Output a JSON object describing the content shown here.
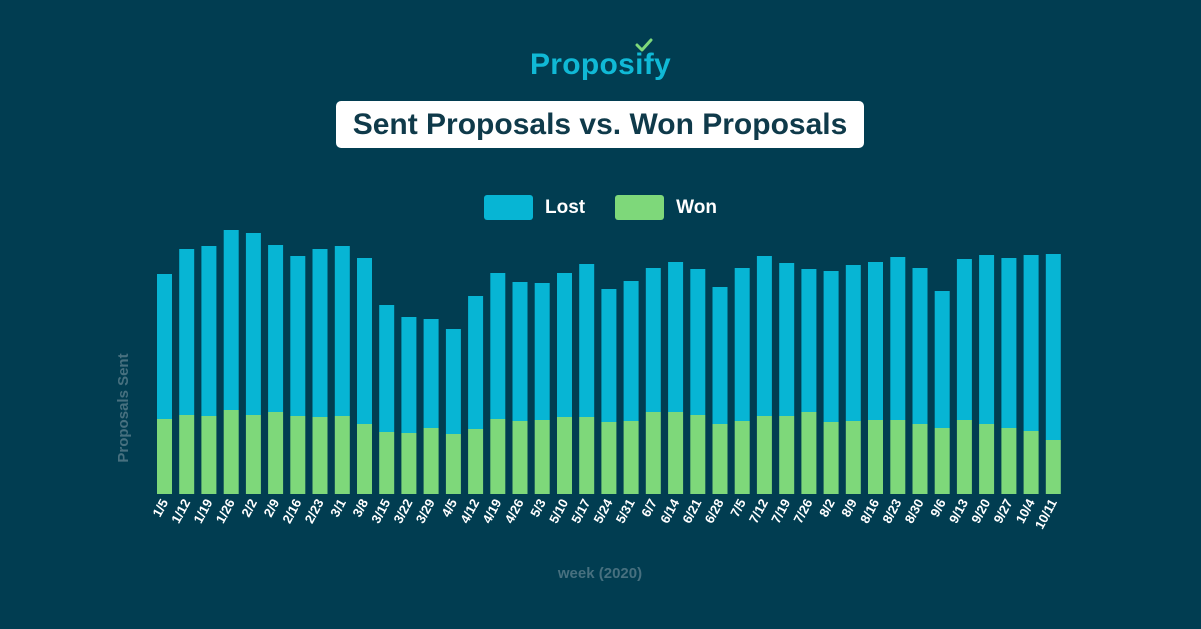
{
  "brand": {
    "name": "Proposify",
    "color": "#10b9d6",
    "check_color": "#7ed87a"
  },
  "chart_data": {
    "type": "bar",
    "stacked": true,
    "title": "Sent Proposals vs. Won Proposals",
    "xlabel": "week (2020)",
    "ylabel": "Proposals Sent",
    "y_axis_ticks_shown": false,
    "grid": false,
    "legend_position": "top-center",
    "categories": [
      "1/5",
      "1/12",
      "1/19",
      "1/26",
      "2/2",
      "2/9",
      "2/16",
      "2/23",
      "3/1",
      "3/8",
      "3/15",
      "3/22",
      "3/29",
      "4/5",
      "4/12",
      "4/19",
      "4/26",
      "5/3",
      "5/10",
      "5/17",
      "5/24",
      "5/31",
      "6/7",
      "6/14",
      "6/21",
      "6/28",
      "7/5",
      "7/12",
      "7/19",
      "7/26",
      "8/2",
      "8/9",
      "8/16",
      "8/23",
      "8/30",
      "9/6",
      "9/13",
      "9/20",
      "9/27",
      "10/4",
      "10/11"
    ],
    "ylim": [
      0,
      260
    ],
    "series": [
      {
        "name": "Won",
        "color": "#7ed87a",
        "values": [
          75,
          79,
          78,
          84,
          79,
          82,
          78,
          77,
          78,
          70,
          62,
          61,
          66,
          60,
          65,
          75,
          73,
          74,
          77,
          77,
          72,
          73,
          82,
          82,
          79,
          70,
          73,
          78,
          78,
          82,
          72,
          73,
          74,
          74,
          70,
          66,
          74,
          70,
          66,
          63,
          54
        ]
      },
      {
        "name": "Lost",
        "color": "#07b5d4",
        "values": [
          145,
          166,
          170,
          180,
          182,
          167,
          160,
          168,
          170,
          166,
          127,
          116,
          109,
          105,
          133,
          146,
          139,
          137,
          144,
          153,
          133,
          140,
          144,
          150,
          146,
          137,
          153,
          160,
          153,
          143,
          151,
          156,
          158,
          163,
          156,
          137,
          161,
          169,
          170,
          176,
          186
        ]
      }
    ]
  }
}
